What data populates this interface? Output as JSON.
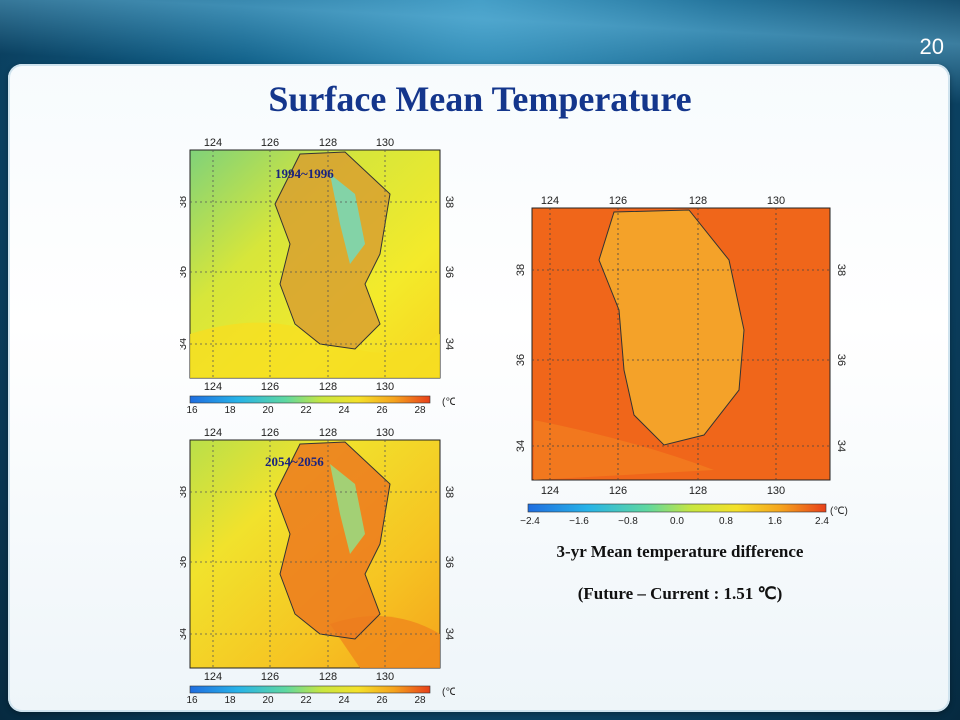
{
  "slide": {
    "page_number": "20",
    "title": "Surface Mean Temperature"
  },
  "maps": {
    "current": {
      "label": "1994~1996",
      "lon_ticks": [
        "124",
        "126",
        "128",
        "130"
      ],
      "lat_ticks": [
        "38",
        "36",
        "34"
      ],
      "colorbar_ticks": [
        "16",
        "18",
        "20",
        "22",
        "24",
        "26",
        "28"
      ],
      "colorbar_unit": "(℃)"
    },
    "future": {
      "label": "2054~2056",
      "lon_ticks": [
        "124",
        "126",
        "128",
        "130"
      ],
      "lat_ticks": [
        "38",
        "36",
        "34"
      ],
      "colorbar_ticks": [
        "16",
        "18",
        "20",
        "22",
        "24",
        "26",
        "28"
      ],
      "colorbar_unit": "(℃)"
    },
    "difference": {
      "lon_ticks": [
        "124",
        "126",
        "128",
        "130"
      ],
      "lat_ticks": [
        "38",
        "36",
        "34"
      ],
      "colorbar_ticks": [
        "−2.4",
        "−1.6",
        "−0.8",
        "0.0",
        "0.8",
        "1.6",
        "2.4"
      ],
      "colorbar_unit": "(℃)"
    }
  },
  "caption": {
    "line1": "3-yr Mean temperature difference",
    "line2": "(Future – Current : 1.51 ℃)"
  },
  "colors": {
    "title": "#14368c",
    "cold": "#1a6fd8",
    "warm": "#e83a10"
  }
}
